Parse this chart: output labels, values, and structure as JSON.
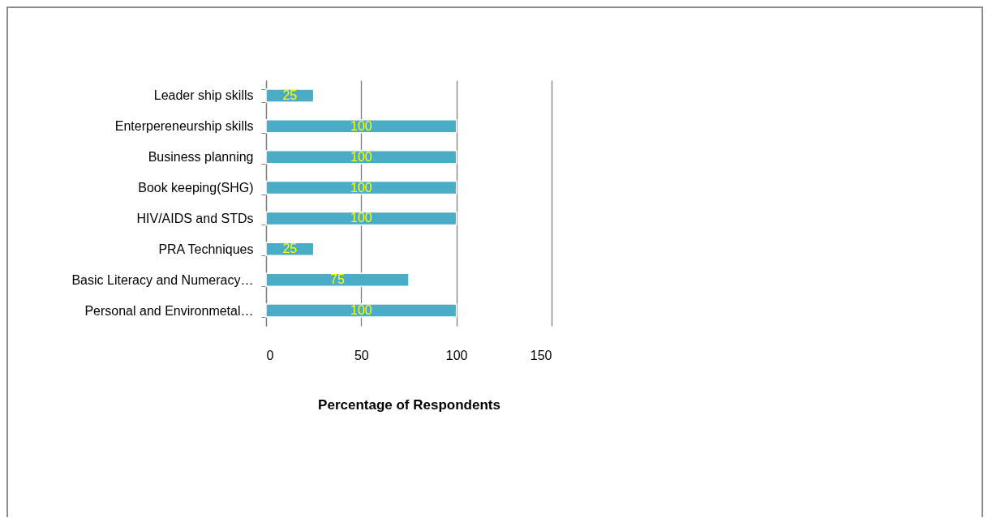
{
  "chart_data": {
    "type": "bar",
    "orientation": "horizontal",
    "xlabel": "Percentage of Respondents",
    "categories": [
      "Leader ship skills",
      "Enterpereneurship skills",
      "Business planning",
      "Book keeping(SHG)",
      "HIV/AIDS and STDs",
      "PRA Techniques",
      "Basic Literacy and Numeracy…",
      "Personal and Environmetal…"
    ],
    "values": [
      25,
      100,
      100,
      100,
      100,
      25,
      75,
      100
    ],
    "color": "#4bacc6",
    "xlim": [
      0,
      150
    ],
    "xticks": [
      0,
      50,
      100,
      150
    ],
    "grid": "x",
    "data_labels": true
  }
}
